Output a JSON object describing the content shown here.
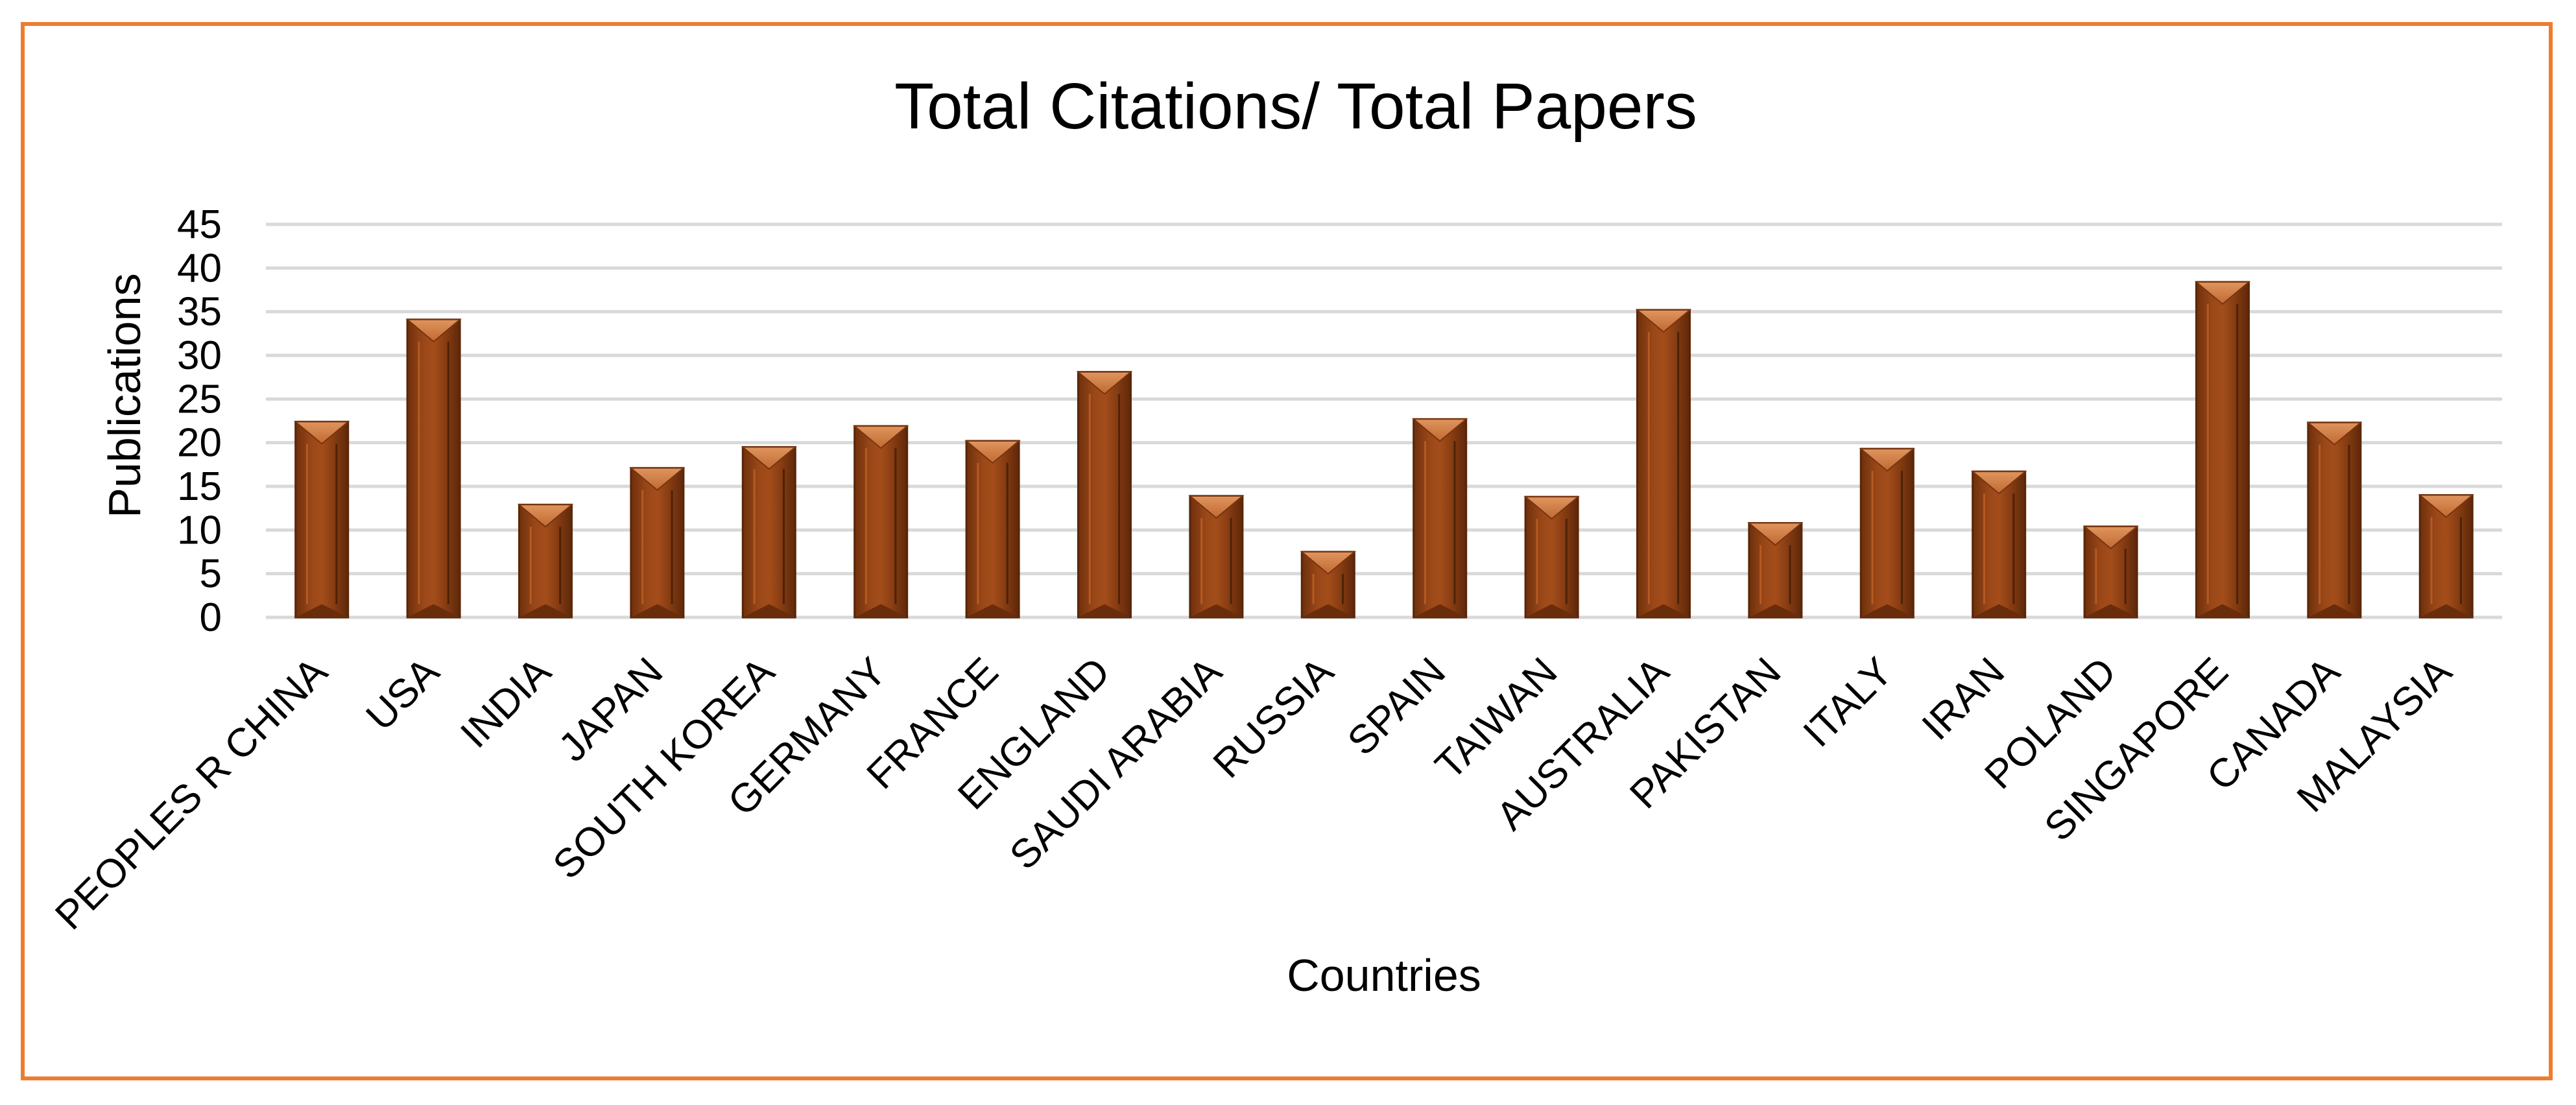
{
  "chart_data": {
    "type": "bar",
    "title": "Total Citations/ Total Papers",
    "xlabel": "Countries",
    "ylabel": "Publications",
    "ylim": [
      0,
      45
    ],
    "yticks": [
      0,
      5,
      10,
      15,
      20,
      25,
      30,
      35,
      40,
      45
    ],
    "grid": true,
    "legend": "none",
    "categories": [
      "PEOPLES R CHINA",
      "USA",
      "INDIA",
      "JAPAN",
      "SOUTH KOREA",
      "GERMANY",
      "FRANCE",
      "ENGLAND",
      "SAUDI ARABIA",
      "RUSSIA",
      "SPAIN",
      "TAIWAN",
      "AUSTRALIA",
      "PAKISTAN",
      "ITALY",
      "IRAN",
      "POLAND",
      "SINGAPORE",
      "CANADA",
      "MALAYSIA"
    ],
    "values": [
      22.4,
      34.1,
      12.9,
      17.1,
      19.5,
      21.9,
      20.2,
      28.1,
      13.9,
      7.5,
      22.7,
      13.8,
      35.2,
      10.8,
      19.3,
      16.7,
      10.4,
      38.4,
      22.3,
      14.0
    ],
    "colors": {
      "bar_front": "#8B3F13",
      "bar_top": "#D27E45",
      "frame": "#ED7D31",
      "grid": "#d9d9d9"
    }
  }
}
